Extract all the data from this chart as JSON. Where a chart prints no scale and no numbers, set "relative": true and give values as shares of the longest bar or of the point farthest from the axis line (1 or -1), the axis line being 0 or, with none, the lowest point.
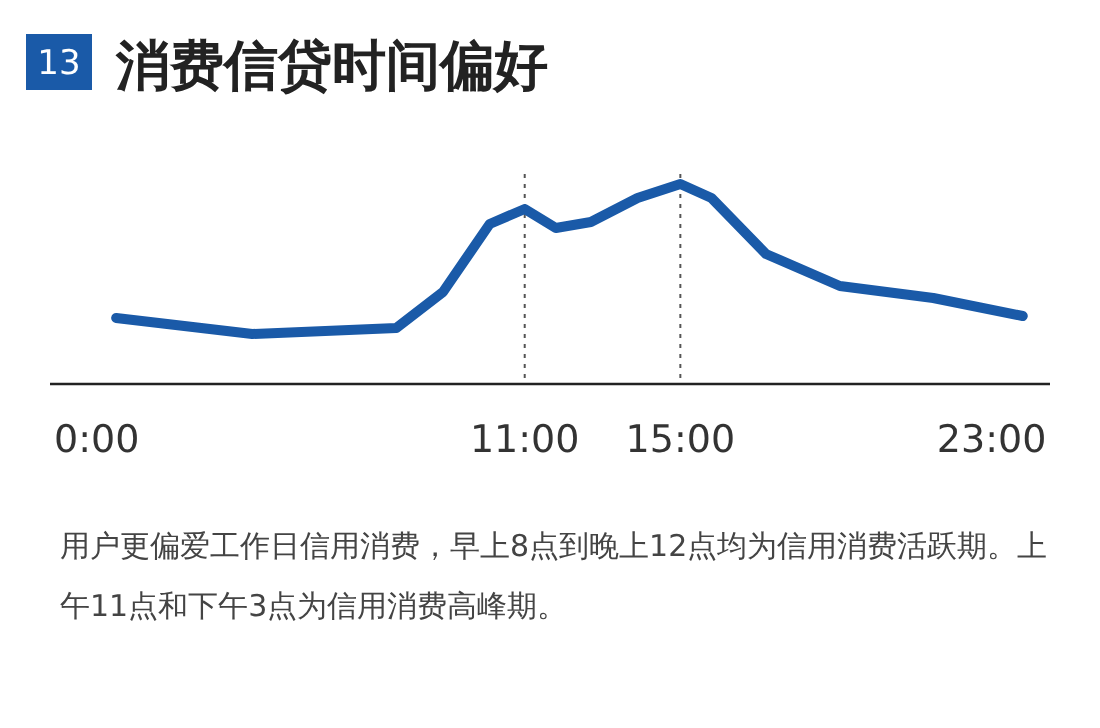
{
  "chart_data": {
    "type": "line",
    "title": "消费信贷时间偏好",
    "relative": true,
    "x": [
      0.5,
      4,
      7.7,
      8.9,
      10.1,
      11,
      11.8,
      12.7,
      13.9,
      15,
      15.8,
      17.2,
      19.1,
      21.5,
      23.8
    ],
    "series": [
      {
        "color": "#1a5aa8",
        "values": [
          0.33,
          0.25,
          0.28,
          0.46,
          0.8,
          0.875,
          0.78,
          0.81,
          0.93,
          1,
          0.93,
          0.65,
          0.49,
          0.43,
          0.34
        ]
      }
    ],
    "xlim": [
      -1.2,
      24.5
    ],
    "xticks": [
      {
        "value": 0,
        "label": "0:00"
      },
      {
        "value": 11,
        "label": "11:00"
      },
      {
        "value": 15,
        "label": "15:00"
      },
      {
        "value": 23,
        "label": "23:00"
      }
    ],
    "ref_lines": [
      {
        "axis": "x",
        "value": 11,
        "color": "#555555",
        "line_style": "dotted"
      },
      {
        "axis": "x",
        "value": 15,
        "color": "#555555",
        "line_style": "dotted"
      }
    ],
    "annotations": [
      "13",
      "用户更偏爱工作日信用消费，早上8点到晚上12点均为信用消费活跃期。上午11点和下午3点为信用消费高峰期。"
    ],
    "marker": "none",
    "line_style": "solid"
  }
}
